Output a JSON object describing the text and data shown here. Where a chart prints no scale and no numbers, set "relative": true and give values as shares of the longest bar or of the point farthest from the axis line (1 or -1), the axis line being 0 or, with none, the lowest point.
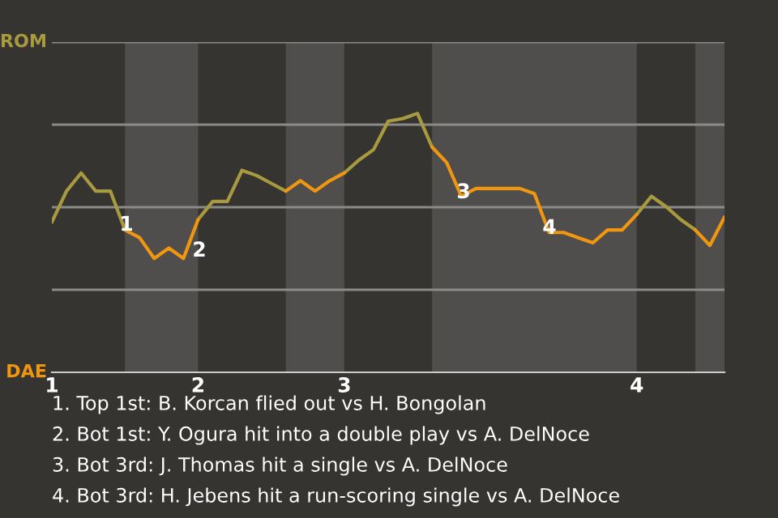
{
  "chart_data": {
    "type": "line",
    "categories": [
      "1",
      null,
      null,
      null,
      null,
      null,
      null,
      null,
      null,
      null,
      "2",
      null,
      null,
      null,
      null,
      null,
      null,
      null,
      null,
      null,
      "3",
      null,
      null,
      null,
      null,
      null,
      null,
      null,
      null,
      null,
      null,
      null,
      null,
      null,
      null,
      null,
      null,
      null,
      null,
      null,
      "4",
      null,
      null,
      null,
      null,
      null,
      null
    ],
    "relative": true,
    "series": [
      {
        "color": "#a89a3e",
        "values": [
          0.58,
          0.7,
          0.77,
          0.7,
          0.7,
          0.55,
          null,
          null,
          null,
          null,
          0.59,
          0.66,
          0.66,
          0.78,
          0.76,
          0.73,
          0.7,
          null,
          null,
          null,
          0.77,
          0.82,
          0.86,
          0.97,
          0.98,
          1.0,
          0.87,
          null,
          null,
          null,
          null,
          null,
          null,
          null,
          null,
          null,
          null,
          null,
          null,
          null,
          0.61,
          0.68,
          0.64,
          0.59,
          0.55,
          null,
          null
        ]
      },
      {
        "color": "#f0960f",
        "values": [
          null,
          null,
          null,
          null,
          null,
          0.55,
          0.52,
          0.44,
          0.48,
          0.44,
          0.59,
          null,
          null,
          null,
          null,
          null,
          0.7,
          0.74,
          0.7,
          0.74,
          0.77,
          null,
          null,
          null,
          null,
          null,
          0.87,
          0.81,
          0.68,
          0.71,
          0.71,
          0.71,
          0.71,
          0.69,
          0.54,
          0.54,
          0.52,
          0.5,
          0.55,
          0.55,
          0.61,
          null,
          null,
          null,
          0.55,
          0.49,
          0.6
        ]
      }
    ],
    "grid": "y",
    "annotations": [
      "ROM",
      "DAE",
      "1",
      "2",
      "3",
      "4",
      "1. Top 1st: B. Korcan flied out vs H. Bongolan",
      "2. Bot 1st: Y. Ogura hit into a double play vs A. DelNoce",
      "3. Bot 3rd: J. Thomas hit a single vs A. DelNoce",
      "4. Bot 3rd: H. Jebens hit a run-scoring single vs A. DelNoce"
    ]
  }
}
